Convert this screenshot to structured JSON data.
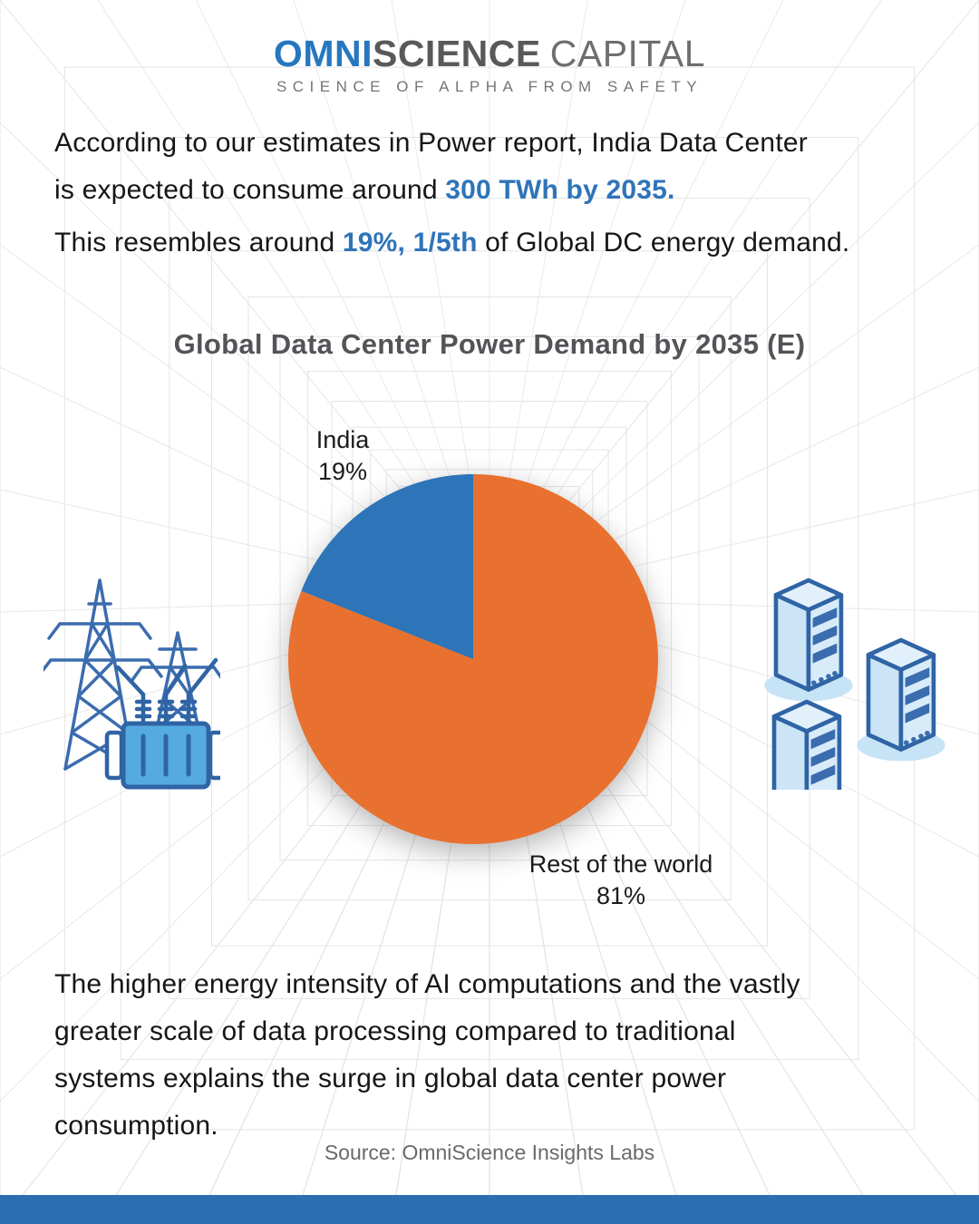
{
  "logo": {
    "word_blue": "OMNI",
    "word_dark": "SCIENCE",
    "word_light": "CAPITAL",
    "tagline": "SCIENCE OF ALPHA FROM SAFETY"
  },
  "intro": {
    "p1_line1": "According to our estimates in Power report, India Data Center",
    "p1_line2_prefix": "is expected to consume around ",
    "p1_highlight": "300 TWh by 2035.",
    "p2_prefix": "This resembles around ",
    "p2_highlight": "19%, 1/5th",
    "p2_suffix": " of Global DC energy demand."
  },
  "chart_data": {
    "type": "pie",
    "title": "Global Data Center Power Demand by 2035 (E)",
    "slices": [
      {
        "label": "India",
        "value": 19,
        "pct_label": "19%",
        "color": "#2E74B9"
      },
      {
        "label": "Rest of the world",
        "value": 81,
        "pct_label": "81%",
        "color": "#E8712F"
      }
    ],
    "unit": "percent",
    "start_angle": "top",
    "direction": "first-slice-counterclockwise-from-top",
    "legend_position": "outside-data-labels"
  },
  "footer": {
    "body_lines": [
      "The higher energy intensity of AI computations and the vastly",
      "greater scale of data processing compared to traditional",
      "systems explains the surge in global data center power",
      "consumption."
    ],
    "source": "Source: OmniScience Insights Labs"
  },
  "icons": {
    "left": "power-grid-icon",
    "right": "server-towers-icon"
  },
  "colors": {
    "accent_blue": "#2E74B9",
    "pie_orange": "#E8712F",
    "logo_blue": "#2677BF",
    "logo_dark_gray": "#58595B",
    "logo_light_gray": "#6D6E71",
    "title_gray": "#525457",
    "body_text": "#161616",
    "source_gray": "#696A6D",
    "bottom_bar_blue": "#2B6FB3",
    "grid_line": "#E4E4E4"
  }
}
